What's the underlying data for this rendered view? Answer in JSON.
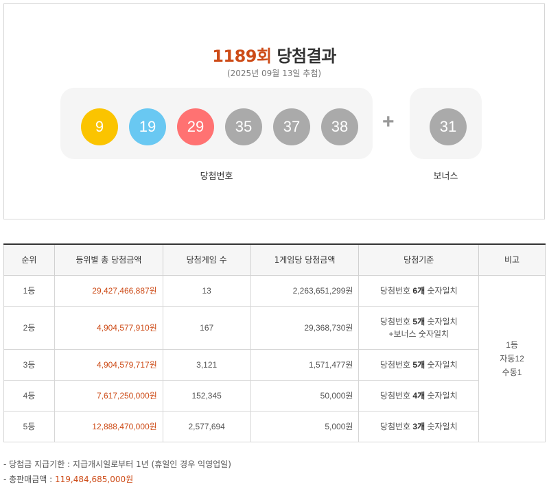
{
  "header": {
    "round": "1189회",
    "title": "당첨결과",
    "draw_date": "(2025년 09월 13일 추첨)"
  },
  "winning_numbers": [
    {
      "number": "9",
      "color": "#fbc400"
    },
    {
      "number": "19",
      "color": "#69c8f2"
    },
    {
      "number": "29",
      "color": "#ff7272"
    },
    {
      "number": "35",
      "color": "#aaaaaa"
    },
    {
      "number": "37",
      "color": "#aaaaaa"
    },
    {
      "number": "38",
      "color": "#aaaaaa"
    }
  ],
  "bonus_number": {
    "number": "31",
    "color": "#aaaaaa"
  },
  "plus_sign": "+",
  "labels": {
    "main": "당첨번호",
    "bonus": "보너스"
  },
  "table": {
    "headers": [
      "순위",
      "등위별 총 당첨금액",
      "당첨게임 수",
      "1게임당 당첨금액",
      "당첨기준",
      "비고"
    ],
    "rows": [
      {
        "rank": "1등",
        "total": "29,427,466,887원",
        "games": "13",
        "per_game": "2,263,651,299원",
        "criteria_prefix": "당첨번호 ",
        "criteria_bold": "6개",
        "criteria_suffix": " 숫자일치",
        "criteria_line2": ""
      },
      {
        "rank": "2등",
        "total": "4,904,577,910원",
        "games": "167",
        "per_game": "29,368,730원",
        "criteria_prefix": "당첨번호 ",
        "criteria_bold": "5개",
        "criteria_suffix": " 숫자일치",
        "criteria_line2": "+보너스 숫자일치"
      },
      {
        "rank": "3등",
        "total": "4,904,579,717원",
        "games": "3,121",
        "per_game": "1,571,477원",
        "criteria_prefix": "당첨번호 ",
        "criteria_bold": "5개",
        "criteria_suffix": " 숫자일치",
        "criteria_line2": ""
      },
      {
        "rank": "4등",
        "total": "7,617,250,000원",
        "games": "152,345",
        "per_game": "50,000원",
        "criteria_prefix": "당첨번호 ",
        "criteria_bold": "4개",
        "criteria_suffix": " 숫자일치",
        "criteria_line2": ""
      },
      {
        "rank": "5등",
        "total": "12,888,470,000원",
        "games": "2,577,694",
        "per_game": "5,000원",
        "criteria_prefix": "당첨번호 ",
        "criteria_bold": "3개",
        "criteria_suffix": " 숫자일치",
        "criteria_line2": ""
      }
    ],
    "remark": {
      "line1": "1등",
      "line2": "자동12",
      "line3": "수동1"
    }
  },
  "notes": {
    "deadline": "-  당첨금 지급기한 : 지급개시일로부터 1년 (휴일인 경우 익영업일)",
    "sales_label": "-  총판매금액 : ",
    "sales_amount": "119,484,685,000원"
  },
  "colors": {
    "accent": "#cd4b17"
  }
}
